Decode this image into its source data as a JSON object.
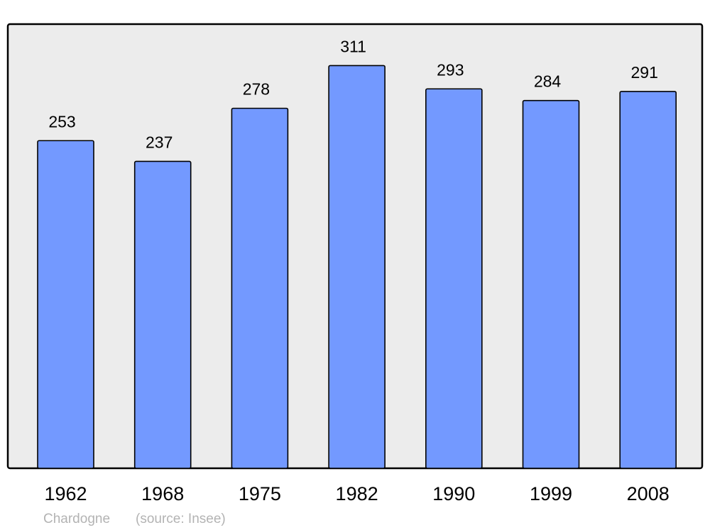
{
  "chart_data": {
    "type": "bar",
    "title": "",
    "xlabel": "",
    "ylabel": "",
    "categories": [
      "1962",
      "1968",
      "1975",
      "1982",
      "1990",
      "1999",
      "2008"
    ],
    "values": [
      253,
      237,
      278,
      311,
      293,
      284,
      291
    ],
    "data_labels": [
      "253",
      "237",
      "278",
      "311",
      "293",
      "284",
      "291"
    ],
    "ylim": [
      0,
      343
    ],
    "grid": false,
    "legend": "none",
    "colors": {
      "bar": "#7399ff",
      "plot_background": "#ececec",
      "frame": "#000000",
      "footer_text": "#b3b3b3"
    }
  },
  "footer": {
    "place": "Chardogne",
    "source": "(source: Insee)"
  }
}
